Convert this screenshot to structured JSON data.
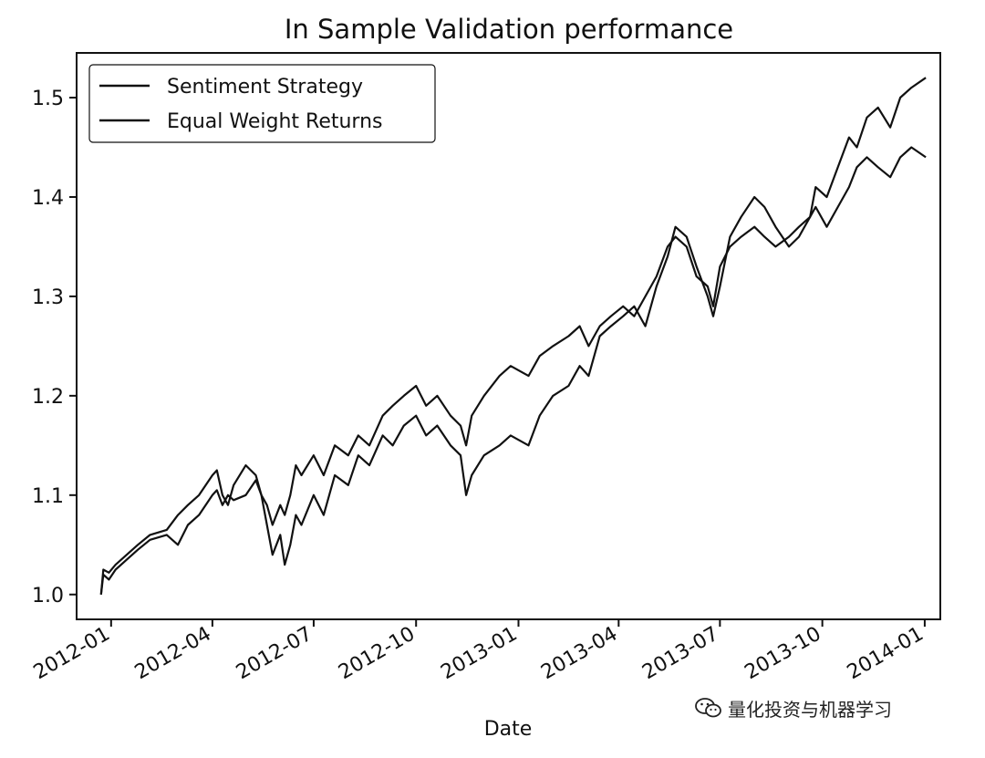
{
  "chart_data": {
    "type": "line",
    "title": "In Sample Validation performance",
    "xlabel": "Date",
    "ylabel": "",
    "x_ticks": [
      "2012-01",
      "2012-04",
      "2012-07",
      "2012-10",
      "2013-01",
      "2013-04",
      "2013-07",
      "2013-10",
      "2014-01"
    ],
    "y_ticks": [
      "1.0",
      "1.1",
      "1.2",
      "1.3",
      "1.4",
      "1.5"
    ],
    "xlim": [
      "2011-12-01",
      "2014-01-15"
    ],
    "ylim": [
      0.975,
      1.545
    ],
    "grid": false,
    "legend_position": "upper-left",
    "series": [
      {
        "name": "Sentiment Strategy",
        "color": "#111111",
        "style": "solid",
        "points": [
          [
            "2011-12-23",
            1.0
          ],
          [
            "2011-12-25",
            1.025
          ],
          [
            "2011-12-30",
            1.022
          ],
          [
            "2012-01-05",
            1.03
          ],
          [
            "2012-01-15",
            1.04
          ],
          [
            "2012-01-25",
            1.05
          ],
          [
            "2012-02-05",
            1.06
          ],
          [
            "2012-02-20",
            1.065
          ],
          [
            "2012-03-01",
            1.08
          ],
          [
            "2012-03-10",
            1.09
          ],
          [
            "2012-03-20",
            1.1
          ],
          [
            "2012-04-01",
            1.12
          ],
          [
            "2012-04-05",
            1.125
          ],
          [
            "2012-04-10",
            1.1
          ],
          [
            "2012-04-15",
            1.09
          ],
          [
            "2012-04-20",
            1.11
          ],
          [
            "2012-05-01",
            1.13
          ],
          [
            "2012-05-10",
            1.12
          ],
          [
            "2012-05-15",
            1.1
          ],
          [
            "2012-05-20",
            1.07
          ],
          [
            "2012-05-25",
            1.04
          ],
          [
            "2012-06-01",
            1.06
          ],
          [
            "2012-06-05",
            1.03
          ],
          [
            "2012-06-10",
            1.05
          ],
          [
            "2012-06-15",
            1.08
          ],
          [
            "2012-06-20",
            1.07
          ],
          [
            "2012-07-01",
            1.1
          ],
          [
            "2012-07-10",
            1.08
          ],
          [
            "2012-07-20",
            1.12
          ],
          [
            "2012-08-01",
            1.11
          ],
          [
            "2012-08-10",
            1.14
          ],
          [
            "2012-08-20",
            1.13
          ],
          [
            "2012-09-01",
            1.16
          ],
          [
            "2012-09-10",
            1.15
          ],
          [
            "2012-09-20",
            1.17
          ],
          [
            "2012-10-01",
            1.18
          ],
          [
            "2012-10-10",
            1.16
          ],
          [
            "2012-10-20",
            1.17
          ],
          [
            "2012-11-01",
            1.15
          ],
          [
            "2012-11-10",
            1.14
          ],
          [
            "2012-11-15",
            1.1
          ],
          [
            "2012-11-20",
            1.12
          ],
          [
            "2012-12-01",
            1.14
          ],
          [
            "2012-12-15",
            1.15
          ],
          [
            "2012-12-25",
            1.16
          ],
          [
            "2013-01-10",
            1.15
          ],
          [
            "2013-01-20",
            1.18
          ],
          [
            "2013-02-01",
            1.2
          ],
          [
            "2013-02-15",
            1.21
          ],
          [
            "2013-02-25",
            1.23
          ],
          [
            "2013-03-05",
            1.22
          ],
          [
            "2013-03-15",
            1.26
          ],
          [
            "2013-03-25",
            1.27
          ],
          [
            "2013-04-05",
            1.28
          ],
          [
            "2013-04-15",
            1.29
          ],
          [
            "2013-04-25",
            1.27
          ],
          [
            "2013-05-05",
            1.31
          ],
          [
            "2013-05-15",
            1.34
          ],
          [
            "2013-05-22",
            1.37
          ],
          [
            "2013-06-01",
            1.36
          ],
          [
            "2013-06-10",
            1.33
          ],
          [
            "2013-06-20",
            1.3
          ],
          [
            "2013-06-25",
            1.28
          ],
          [
            "2013-07-01",
            1.31
          ],
          [
            "2013-07-10",
            1.36
          ],
          [
            "2013-07-20",
            1.38
          ],
          [
            "2013-08-01",
            1.4
          ],
          [
            "2013-08-10",
            1.39
          ],
          [
            "2013-08-20",
            1.37
          ],
          [
            "2013-09-01",
            1.35
          ],
          [
            "2013-09-10",
            1.36
          ],
          [
            "2013-09-20",
            1.38
          ],
          [
            "2013-09-25",
            1.41
          ],
          [
            "2013-10-05",
            1.4
          ],
          [
            "2013-10-15",
            1.43
          ],
          [
            "2013-10-25",
            1.46
          ],
          [
            "2013-11-01",
            1.45
          ],
          [
            "2013-11-10",
            1.48
          ],
          [
            "2013-11-20",
            1.49
          ],
          [
            "2013-12-01",
            1.47
          ],
          [
            "2013-12-10",
            1.5
          ],
          [
            "2013-12-20",
            1.51
          ],
          [
            "2014-01-02",
            1.52
          ]
        ]
      },
      {
        "name": "Equal Weight Returns",
        "color": "#111111",
        "style": "solid",
        "points": [
          [
            "2011-12-23",
            1.0
          ],
          [
            "2011-12-25",
            1.02
          ],
          [
            "2011-12-30",
            1.015
          ],
          [
            "2012-01-05",
            1.025
          ],
          [
            "2012-01-15",
            1.035
          ],
          [
            "2012-01-25",
            1.045
          ],
          [
            "2012-02-05",
            1.055
          ],
          [
            "2012-02-20",
            1.06
          ],
          [
            "2012-03-01",
            1.05
          ],
          [
            "2012-03-10",
            1.07
          ],
          [
            "2012-03-20",
            1.08
          ],
          [
            "2012-04-01",
            1.1
          ],
          [
            "2012-04-05",
            1.105
          ],
          [
            "2012-04-10",
            1.09
          ],
          [
            "2012-04-15",
            1.1
          ],
          [
            "2012-04-20",
            1.095
          ],
          [
            "2012-05-01",
            1.1
          ],
          [
            "2012-05-10",
            1.115
          ],
          [
            "2012-05-15",
            1.1
          ],
          [
            "2012-05-20",
            1.09
          ],
          [
            "2012-05-25",
            1.07
          ],
          [
            "2012-06-01",
            1.09
          ],
          [
            "2012-06-05",
            1.08
          ],
          [
            "2012-06-10",
            1.1
          ],
          [
            "2012-06-15",
            1.13
          ],
          [
            "2012-06-20",
            1.12
          ],
          [
            "2012-07-01",
            1.14
          ],
          [
            "2012-07-10",
            1.12
          ],
          [
            "2012-07-20",
            1.15
          ],
          [
            "2012-08-01",
            1.14
          ],
          [
            "2012-08-10",
            1.16
          ],
          [
            "2012-08-20",
            1.15
          ],
          [
            "2012-09-01",
            1.18
          ],
          [
            "2012-09-10",
            1.19
          ],
          [
            "2012-09-20",
            1.2
          ],
          [
            "2012-10-01",
            1.21
          ],
          [
            "2012-10-10",
            1.19
          ],
          [
            "2012-10-20",
            1.2
          ],
          [
            "2012-11-01",
            1.18
          ],
          [
            "2012-11-10",
            1.17
          ],
          [
            "2012-11-15",
            1.15
          ],
          [
            "2012-11-20",
            1.18
          ],
          [
            "2012-12-01",
            1.2
          ],
          [
            "2012-12-15",
            1.22
          ],
          [
            "2012-12-25",
            1.23
          ],
          [
            "2013-01-10",
            1.22
          ],
          [
            "2013-01-20",
            1.24
          ],
          [
            "2013-02-01",
            1.25
          ],
          [
            "2013-02-15",
            1.26
          ],
          [
            "2013-02-25",
            1.27
          ],
          [
            "2013-03-05",
            1.25
          ],
          [
            "2013-03-15",
            1.27
          ],
          [
            "2013-03-25",
            1.28
          ],
          [
            "2013-04-05",
            1.29
          ],
          [
            "2013-04-15",
            1.28
          ],
          [
            "2013-04-25",
            1.3
          ],
          [
            "2013-05-05",
            1.32
          ],
          [
            "2013-05-15",
            1.35
          ],
          [
            "2013-05-22",
            1.36
          ],
          [
            "2013-06-01",
            1.35
          ],
          [
            "2013-06-10",
            1.32
          ],
          [
            "2013-06-20",
            1.31
          ],
          [
            "2013-06-25",
            1.29
          ],
          [
            "2013-07-01",
            1.33
          ],
          [
            "2013-07-10",
            1.35
          ],
          [
            "2013-07-20",
            1.36
          ],
          [
            "2013-08-01",
            1.37
          ],
          [
            "2013-08-10",
            1.36
          ],
          [
            "2013-08-20",
            1.35
          ],
          [
            "2013-09-01",
            1.36
          ],
          [
            "2013-09-10",
            1.37
          ],
          [
            "2013-09-20",
            1.38
          ],
          [
            "2013-09-25",
            1.39
          ],
          [
            "2013-10-05",
            1.37
          ],
          [
            "2013-10-15",
            1.39
          ],
          [
            "2013-10-25",
            1.41
          ],
          [
            "2013-11-01",
            1.43
          ],
          [
            "2013-11-10",
            1.44
          ],
          [
            "2013-11-20",
            1.43
          ],
          [
            "2013-12-01",
            1.42
          ],
          [
            "2013-12-10",
            1.44
          ],
          [
            "2013-12-20",
            1.45
          ],
          [
            "2014-01-02",
            1.44
          ]
        ]
      }
    ]
  },
  "watermark": {
    "text": "量化投资与机器学习",
    "icon": "wechat-icon"
  }
}
